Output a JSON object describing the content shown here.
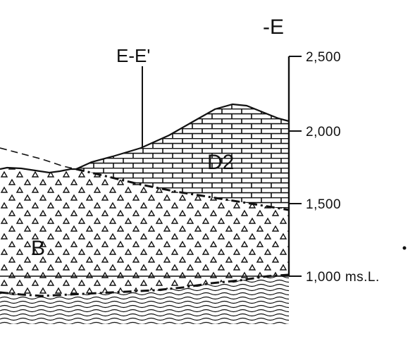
{
  "section": {
    "end_label": "-E",
    "cross_section_label": "E-E'",
    "unit_labels": {
      "layer_b": "B",
      "layer_d2": "D2"
    }
  },
  "elevation_scale": {
    "ticks": [
      {
        "value": 2500,
        "label": "2,500"
      },
      {
        "value": 2000,
        "label": "2,000"
      },
      {
        "value": 1500,
        "label": "1,500"
      },
      {
        "value": 1000,
        "label": "1,000 ms.L."
      }
    ]
  },
  "patterns": {
    "layer_d2": "brick-limestone",
    "layer_b": "triangles",
    "basement": "wavy-lines"
  },
  "colors": {
    "ink": "#111111",
    "paper": "#ffffff"
  }
}
